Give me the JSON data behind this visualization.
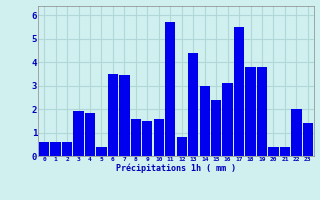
{
  "hours": [
    0,
    1,
    2,
    3,
    4,
    5,
    6,
    7,
    8,
    9,
    10,
    11,
    12,
    13,
    14,
    15,
    16,
    17,
    18,
    19,
    20,
    21,
    22,
    23
  ],
  "values": [
    0.6,
    0.6,
    0.6,
    1.9,
    1.85,
    0.4,
    3.5,
    3.45,
    1.6,
    1.5,
    1.6,
    5.7,
    0.8,
    4.4,
    3.0,
    2.4,
    3.1,
    5.5,
    3.8,
    3.8,
    0.4,
    0.4,
    2.0,
    1.4
  ],
  "bar_color": "#0000ee",
  "bg_color": "#d0f0f0",
  "grid_color": "#b0d8d8",
  "xlabel": "Précipitations 1h ( mm )",
  "xlabel_color": "#0000bb",
  "tick_color": "#0000bb",
  "ylim": [
    0,
    6.4
  ],
  "yticks": [
    0,
    1,
    2,
    3,
    4,
    5,
    6
  ],
  "title": ""
}
